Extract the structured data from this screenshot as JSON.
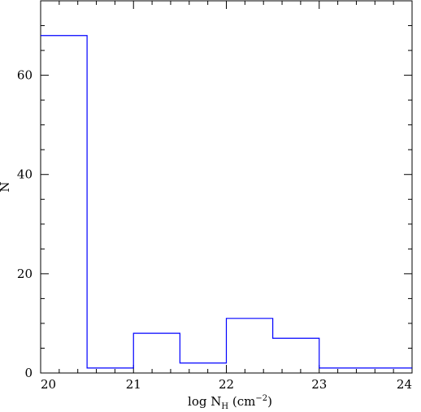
{
  "chart_data": {
    "type": "histogram",
    "bin_edges": [
      20,
      20.5,
      21,
      21.5,
      22,
      22.5,
      23,
      23.5,
      24
    ],
    "values": [
      68,
      1,
      8,
      2,
      11,
      7,
      1,
      1
    ],
    "xlim": [
      20,
      24
    ],
    "ylim": [
      0,
      75
    ],
    "x_ticks": [
      20,
      21,
      22,
      23,
      24
    ],
    "x_minor_step": 0.2,
    "y_ticks": [
      0,
      20,
      40,
      60
    ],
    "y_minor_step": 5,
    "xlabel": {
      "prefix": "log N",
      "subscript": "H",
      "unit_open": " (cm",
      "superscript": "−2",
      "unit_close": ")"
    },
    "ylabel": "N",
    "grid": false,
    "line_color": "#0000ff",
    "axis_color": "#000000"
  }
}
